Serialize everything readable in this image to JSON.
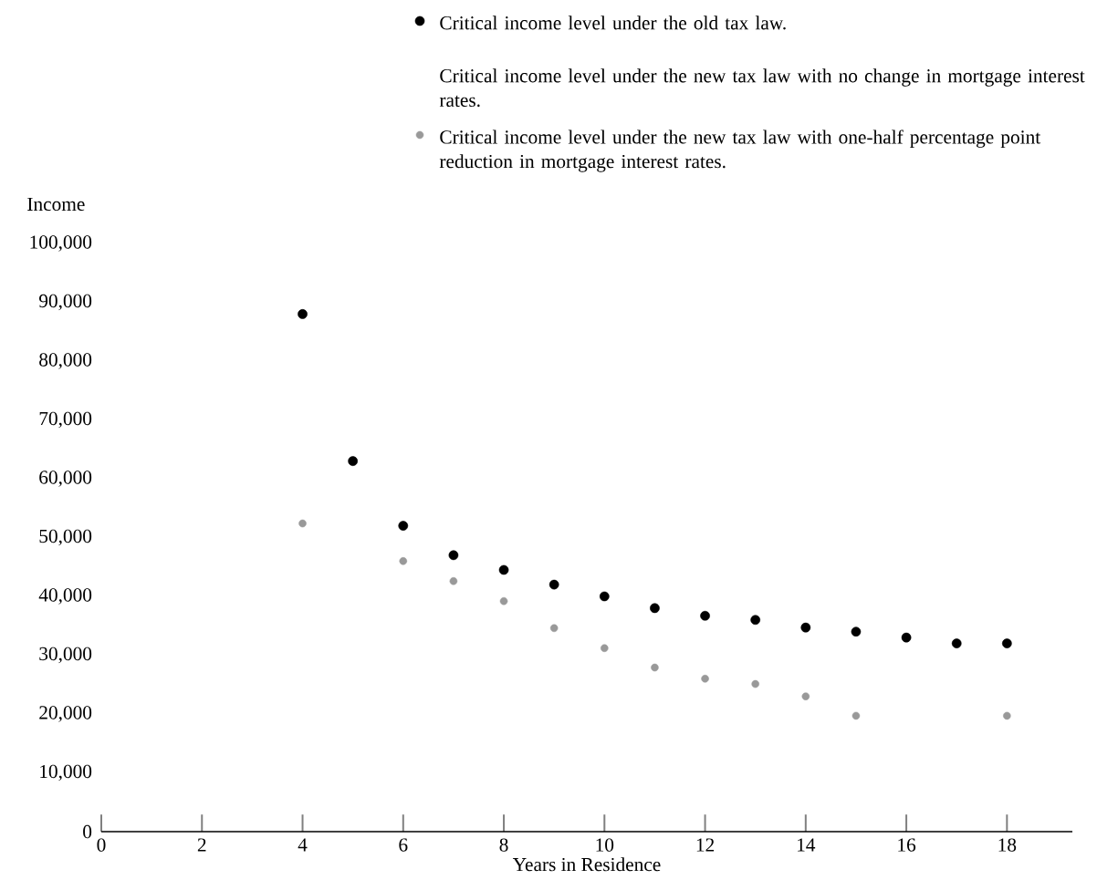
{
  "chart_data": {
    "type": "scatter",
    "xlabel": "Years in Residence",
    "ylabel": "Income",
    "xlim": [
      0,
      19.3
    ],
    "ylim": [
      0,
      100000
    ],
    "xticks": [
      0,
      2,
      4,
      6,
      8,
      10,
      12,
      14,
      16,
      18
    ],
    "yticks": [
      0,
      {
        "value": 10000,
        "label": "10,000"
      },
      {
        "value": 20000,
        "label": "20,000"
      },
      {
        "value": 30000,
        "label": "30,000"
      },
      {
        "value": 40000,
        "label": "40,000"
      },
      {
        "value": 50000,
        "label": "50,000"
      },
      {
        "value": 60000,
        "label": "60,000"
      },
      {
        "value": 70000,
        "label": "70,000"
      },
      {
        "value": 80000,
        "label": "80,000"
      },
      {
        "value": 90000,
        "label": "90,000"
      },
      {
        "value": 100000,
        "label": "100,000"
      }
    ],
    "marker": "circle",
    "legend": "top right",
    "annotations": [
      "Critical income level under the new tax law with no change in mortgage interest rates."
    ],
    "series": [
      {
        "name": "Critical income level under the old tax law.",
        "color": "#000000",
        "x": [
          4,
          5,
          6,
          7,
          8,
          9,
          10,
          11,
          12,
          13,
          14,
          15,
          16,
          17,
          18
        ],
        "values": [
          88000,
          63000,
          52000,
          47000,
          44500,
          42000,
          40000,
          38000,
          36700,
          36000,
          34700,
          34000,
          33000,
          32000,
          32000
        ]
      },
      {
        "name": "Critical income level under the new tax law  with one-half percentage point reduction in mortgage interest rates.",
        "color": "#999999",
        "x": [
          4,
          6,
          7,
          8,
          9,
          10,
          11,
          12,
          13,
          14,
          15,
          18
        ],
        "values": [
          52400,
          46000,
          42600,
          39200,
          34600,
          31200,
          27900,
          26000,
          25100,
          23000,
          19700,
          19700
        ]
      }
    ]
  }
}
